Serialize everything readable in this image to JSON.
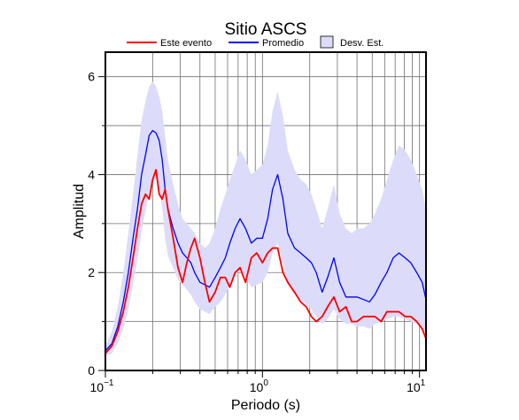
{
  "chart_data": {
    "type": "line",
    "title": "Sitio ASCS",
    "xlabel": "Periodo (s)",
    "ylabel": "Amplitud",
    "x_scale": "log",
    "xlim": [
      0.1,
      11
    ],
    "ylim": [
      0,
      6.5
    ],
    "grid": true,
    "legend_position": "top",
    "x_ticks": [
      {
        "value": 0.1,
        "base": "10",
        "exp": "−1"
      },
      {
        "value": 1,
        "base": "10",
        "exp": "0"
      },
      {
        "value": 10,
        "base": "10",
        "exp": "1"
      }
    ],
    "y_ticks": [
      0,
      2,
      4,
      6
    ],
    "legend": [
      {
        "label": "Este evento",
        "type": "line",
        "color": "#ff0000"
      },
      {
        "label": "Promedio",
        "type": "line",
        "color": "#0000ff"
      },
      {
        "label": "Desv. Est.",
        "type": "band",
        "color": "#dcdcfa"
      }
    ],
    "x": [
      0.1,
      0.11,
      0.12,
      0.13,
      0.14,
      0.15,
      0.16,
      0.17,
      0.18,
      0.19,
      0.2,
      0.21,
      0.22,
      0.23,
      0.24,
      0.25,
      0.27,
      0.29,
      0.31,
      0.33,
      0.35,
      0.37,
      0.4,
      0.43,
      0.46,
      0.5,
      0.54,
      0.58,
      0.62,
      0.67,
      0.72,
      0.78,
      0.85,
      0.92,
      1.0,
      1.08,
      1.16,
      1.25,
      1.35,
      1.45,
      1.6,
      1.75,
      1.9,
      2.05,
      2.2,
      2.4,
      2.6,
      2.85,
      3.1,
      3.4,
      3.7,
      4.0,
      4.4,
      4.8,
      5.2,
      5.7,
      6.2,
      6.8,
      7.4,
      8.1,
      8.8,
      9.6,
      10.4,
      11.0
    ],
    "series": [
      {
        "name": "Este evento",
        "color": "#ff0000",
        "values": [
          0.35,
          0.5,
          0.8,
          1.2,
          1.7,
          2.3,
          2.9,
          3.4,
          3.6,
          3.5,
          3.9,
          4.1,
          3.6,
          3.5,
          3.7,
          3.3,
          2.7,
          2.1,
          1.8,
          2.2,
          2.5,
          2.7,
          2.3,
          1.8,
          1.4,
          1.6,
          1.9,
          1.9,
          1.7,
          2.0,
          2.1,
          1.8,
          2.3,
          2.4,
          2.2,
          2.4,
          2.5,
          2.5,
          2.0,
          1.8,
          1.6,
          1.4,
          1.3,
          1.1,
          1.0,
          1.1,
          1.3,
          1.5,
          1.2,
          1.3,
          1.0,
          1.0,
          1.1,
          1.1,
          1.1,
          1.0,
          1.2,
          1.2,
          1.2,
          1.1,
          1.1,
          1.0,
          0.85,
          0.65
        ]
      },
      {
        "name": "Promedio",
        "color": "#0000ff",
        "values": [
          0.4,
          0.55,
          0.9,
          1.4,
          2.0,
          2.7,
          3.3,
          4.0,
          4.4,
          4.8,
          4.9,
          4.85,
          4.7,
          4.3,
          3.7,
          3.3,
          2.9,
          2.6,
          2.4,
          2.3,
          2.2,
          2.0,
          1.8,
          1.75,
          1.7,
          1.9,
          2.1,
          2.3,
          2.6,
          2.9,
          3.1,
          2.9,
          2.6,
          2.7,
          2.7,
          3.1,
          3.7,
          4.0,
          3.5,
          2.8,
          2.5,
          2.4,
          2.3,
          2.2,
          2.0,
          1.6,
          1.9,
          2.3,
          1.8,
          1.5,
          1.5,
          1.5,
          1.45,
          1.4,
          1.55,
          1.8,
          2.0,
          2.3,
          2.4,
          2.3,
          2.2,
          2.0,
          1.8,
          1.45
        ]
      },
      {
        "name": "Desv. Est.",
        "color": "#dcdcfa",
        "type": "band",
        "upper": [
          0.5,
          0.8,
          1.3,
          2.0,
          2.8,
          3.6,
          4.4,
          5.1,
          5.5,
          5.8,
          5.9,
          5.8,
          5.6,
          5.3,
          4.8,
          4.3,
          3.8,
          3.4,
          3.1,
          3.0,
          2.9,
          2.8,
          2.6,
          2.5,
          2.6,
          2.9,
          3.3,
          3.6,
          3.9,
          4.2,
          4.5,
          4.3,
          4.0,
          4.1,
          4.2,
          4.6,
          5.3,
          5.7,
          5.2,
          4.5,
          4.1,
          3.9,
          3.8,
          3.6,
          3.3,
          2.9,
          3.3,
          3.8,
          3.2,
          2.9,
          2.8,
          2.9,
          2.9,
          3.0,
          3.2,
          3.5,
          3.9,
          4.3,
          4.6,
          4.5,
          4.3,
          4.0,
          3.7,
          3.3
        ],
        "lower": [
          0.3,
          0.35,
          0.55,
          0.85,
          1.25,
          1.75,
          2.25,
          2.85,
          3.25,
          3.65,
          3.85,
          3.9,
          3.75,
          3.3,
          2.7,
          2.35,
          2.1,
          1.85,
          1.75,
          1.65,
          1.55,
          1.4,
          1.25,
          1.2,
          1.15,
          1.3,
          1.4,
          1.55,
          1.75,
          1.95,
          2.05,
          1.9,
          1.7,
          1.75,
          1.8,
          2.0,
          2.4,
          2.6,
          2.2,
          1.75,
          1.55,
          1.45,
          1.35,
          1.25,
          1.1,
          0.95,
          1.05,
          1.25,
          1.05,
          0.95,
          0.95,
          0.9,
          0.9,
          0.85,
          0.95,
          1.0,
          1.05,
          1.1,
          1.1,
          1.05,
          1.0,
          0.95,
          0.85,
          0.75
        ]
      }
    ]
  }
}
